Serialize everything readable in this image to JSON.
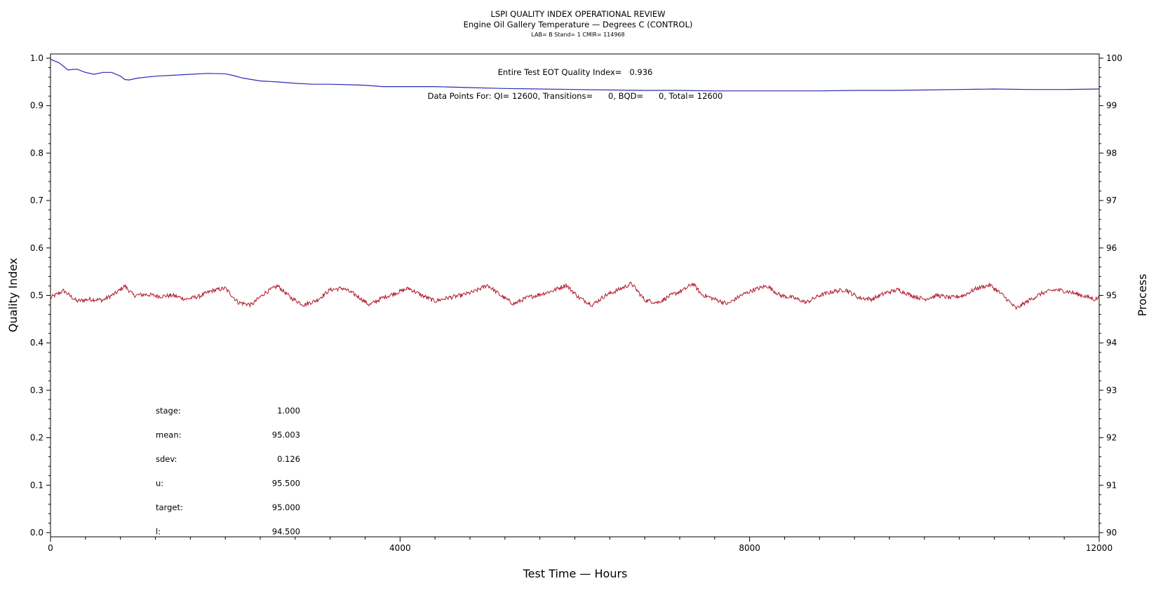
{
  "chart_data": {
    "type": "line",
    "title": "LSPI QUALITY INDEX OPERATIONAL REVIEW",
    "subtitle": "Engine Oil Gallery Temperature — Degrees C (CONTROL)",
    "subtitle2": "LAB= B Stand= 1 CMIR= 114968",
    "xlabel": "Test Time — Hours",
    "ylabel": "Quality Index",
    "ylabel_right": "Process",
    "xlim": [
      0,
      12000
    ],
    "ylim": [
      0.0,
      1.0
    ],
    "ylim_right": [
      90,
      100
    ],
    "x_ticks": [
      "0",
      "4000",
      "8000",
      "12000"
    ],
    "y_ticks": [
      "0.0",
      "0.1",
      "0.2",
      "0.3",
      "0.4",
      "0.5",
      "0.6",
      "0.7",
      "0.8",
      "0.9",
      "1.0"
    ],
    "y_ticks_right": [
      "90",
      "91",
      "92",
      "93",
      "94",
      "95",
      "96",
      "97",
      "98",
      "99",
      "100"
    ],
    "grid": false,
    "colors": {
      "quality_index": "#2b2bb5",
      "process": "#b0182c"
    },
    "annotations": {
      "quality_index_text": "Entire Test EOT Quality Index=   0.936",
      "data_points_text": "Data Points For: QI= 12600, Transitions=      0, BQD=      0, Total= 12600"
    },
    "stats": [
      {
        "label": "stage:",
        "value": "1.000"
      },
      {
        "label": "mean:",
        "value": "95.003"
      },
      {
        "label": "sdev:",
        "value": "0.126"
      },
      {
        "label": "u:",
        "value": "95.500"
      },
      {
        "label": "target:",
        "value": "95.000"
      },
      {
        "label": "l:",
        "value": "94.500"
      }
    ],
    "series": [
      {
        "axis": "left",
        "x": [
          0,
          100,
          200,
          300,
          400,
          500,
          600,
          700,
          800,
          850,
          900,
          1000,
          1200,
          1400,
          1600,
          1800,
          2000,
          2100,
          2200,
          2400,
          2600,
          2800,
          3000,
          3200,
          3400,
          3600,
          3800,
          4000,
          4400,
          4800,
          5200,
          5600,
          6000,
          6400,
          6800,
          7200,
          7600,
          8000,
          8400,
          8800,
          9200,
          9600,
          10000,
          10400,
          10800,
          11200,
          11600,
          12000
        ],
        "y": [
          0.998,
          0.99,
          0.975,
          0.977,
          0.97,
          0.966,
          0.97,
          0.97,
          0.962,
          0.955,
          0.954,
          0.958,
          0.962,
          0.964,
          0.966,
          0.968,
          0.967,
          0.963,
          0.958,
          0.952,
          0.95,
          0.947,
          0.945,
          0.945,
          0.944,
          0.943,
          0.94,
          0.94,
          0.94,
          0.938,
          0.936,
          0.935,
          0.934,
          0.933,
          0.932,
          0.932,
          0.931,
          0.931,
          0.931,
          0.931,
          0.932,
          0.932,
          0.933,
          0.934,
          0.935,
          0.934,
          0.934,
          0.935
        ]
      },
      {
        "axis": "right",
        "x": [
          0,
          150,
          300,
          450,
          600,
          750,
          850,
          950,
          1100,
          1250,
          1400,
          1550,
          1700,
          1850,
          2000,
          2150,
          2300,
          2450,
          2600,
          2750,
          2900,
          3050,
          3200,
          3350,
          3500,
          3650,
          3800,
          3950,
          4100,
          4250,
          4400,
          4550,
          4700,
          4850,
          5000,
          5150,
          5300,
          5450,
          5600,
          5750,
          5900,
          6050,
          6200,
          6350,
          6500,
          6650,
          6800,
          6950,
          7100,
          7250,
          7350,
          7450,
          7600,
          7750,
          7900,
          8050,
          8200,
          8350,
          8500,
          8650,
          8800,
          8950,
          9100,
          9250,
          9400,
          9550,
          9700,
          9850,
          10000,
          10150,
          10300,
          10450,
          10600,
          10750,
          10900,
          11050,
          11200,
          11350,
          11500,
          11650,
          11800,
          11950,
          12000
        ],
        "y": [
          94.95,
          95.1,
          94.88,
          94.92,
          94.9,
          95.05,
          95.2,
          95.0,
          95.02,
          94.98,
          95.0,
          94.92,
          94.98,
          95.1,
          95.15,
          94.85,
          94.8,
          95.05,
          95.2,
          94.95,
          94.8,
          94.9,
          95.12,
          95.15,
          95.0,
          94.8,
          94.95,
          95.05,
          95.15,
          95.0,
          94.88,
          94.95,
          95.0,
          95.08,
          95.22,
          95.0,
          94.82,
          94.95,
          95.02,
          95.1,
          95.22,
          94.95,
          94.8,
          95.0,
          95.12,
          95.25,
          94.9,
          94.85,
          95.0,
          95.12,
          95.25,
          95.02,
          94.92,
          94.82,
          95.0,
          95.12,
          95.2,
          95.0,
          94.95,
          94.85,
          95.0,
          95.08,
          95.12,
          94.95,
          94.92,
          95.05,
          95.12,
          95.0,
          94.92,
          95.0,
          94.95,
          95.0,
          95.15,
          95.22,
          95.0,
          94.72,
          94.9,
          95.05,
          95.12,
          95.08,
          95.0,
          94.92,
          94.95
        ]
      }
    ]
  }
}
